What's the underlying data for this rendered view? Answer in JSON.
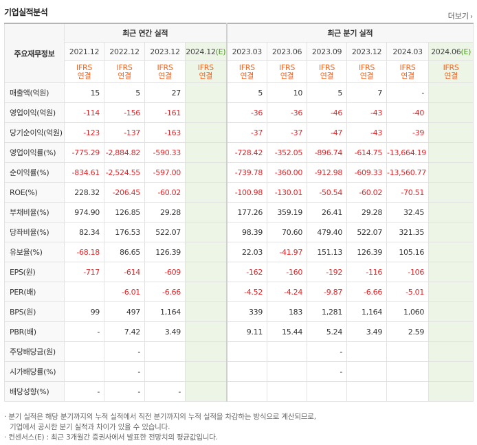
{
  "title": "기업실적분석",
  "more_label": "더보기",
  "header": {
    "row_label": "주요재무정보",
    "annual_group": "최근 연간 실적",
    "quarter_group": "최근 분기 실적",
    "annual_periods": [
      {
        "label": "2021.12",
        "est": ""
      },
      {
        "label": "2022.12",
        "est": ""
      },
      {
        "label": "2023.12",
        "est": ""
      },
      {
        "label": "2024.12",
        "est": "(E)"
      }
    ],
    "quarter_periods": [
      {
        "label": "2023.03",
        "est": ""
      },
      {
        "label": "2023.06",
        "est": ""
      },
      {
        "label": "2023.09",
        "est": ""
      },
      {
        "label": "2023.12",
        "est": ""
      },
      {
        "label": "2024.03",
        "est": ""
      },
      {
        "label": "2024.06",
        "est": "(E)"
      }
    ],
    "basis_line1": "IFRS",
    "basis_line2": "연결"
  },
  "rows": [
    {
      "label": "매출액(억원)",
      "values": [
        "15",
        "5",
        "27",
        "",
        "5",
        "10",
        "5",
        "7",
        "-",
        ""
      ]
    },
    {
      "label": "영업이익(억원)",
      "values": [
        "-114",
        "-156",
        "-161",
        "",
        "-36",
        "-36",
        "-46",
        "-43",
        "-40",
        ""
      ]
    },
    {
      "label": "당기순이익(억원)",
      "values": [
        "-123",
        "-137",
        "-163",
        "",
        "-37",
        "-37",
        "-47",
        "-43",
        "-39",
        ""
      ]
    },
    {
      "label": "영업이익률(%)",
      "values": [
        "-775.29",
        "-2,884.82",
        "-590.33",
        "",
        "-728.42",
        "-352.05",
        "-896.74",
        "-614.75",
        "-13,664.19",
        ""
      ]
    },
    {
      "label": "순이익률(%)",
      "values": [
        "-834.61",
        "-2,524.55",
        "-597.00",
        "",
        "-739.78",
        "-360.00",
        "-912.98",
        "-609.33",
        "-13,560.77",
        ""
      ]
    },
    {
      "label": "ROE(%)",
      "values": [
        "228.32",
        "-206.45",
        "-60.02",
        "",
        "-100.98",
        "-130.01",
        "-50.54",
        "-60.02",
        "-70.51",
        ""
      ]
    },
    {
      "label": "부채비율(%)",
      "values": [
        "974.90",
        "126.85",
        "29.28",
        "",
        "177.26",
        "359.19",
        "26.41",
        "29.28",
        "32.45",
        ""
      ]
    },
    {
      "label": "당좌비율(%)",
      "values": [
        "82.34",
        "176.53",
        "522.07",
        "",
        "98.39",
        "70.60",
        "479.40",
        "522.07",
        "321.35",
        ""
      ]
    },
    {
      "label": "유보율(%)",
      "values": [
        "-68.18",
        "86.65",
        "126.39",
        "",
        "22.03",
        "-41.97",
        "151.13",
        "126.39",
        "105.16",
        ""
      ]
    },
    {
      "label": "EPS(원)",
      "values": [
        "-717",
        "-614",
        "-609",
        "",
        "-162",
        "-160",
        "-192",
        "-116",
        "-106",
        ""
      ]
    },
    {
      "label": "PER(배)",
      "values": [
        "",
        "-6.01",
        "-6.66",
        "",
        "-4.52",
        "-4.24",
        "-9.87",
        "-6.66",
        "-5.01",
        ""
      ]
    },
    {
      "label": "BPS(원)",
      "values": [
        "99",
        "497",
        "1,164",
        "",
        "339",
        "183",
        "1,281",
        "1,164",
        "1,060",
        ""
      ]
    },
    {
      "label": "PBR(배)",
      "values": [
        "-",
        "7.42",
        "3.49",
        "",
        "9.11",
        "15.44",
        "5.24",
        "3.49",
        "2.59",
        ""
      ]
    },
    {
      "label": "주당배당금(원)",
      "values": [
        "",
        "-",
        "",
        "",
        "",
        "",
        "-",
        "",
        "",
        ""
      ]
    },
    {
      "label": "시가배당률(%)",
      "values": [
        "",
        "-",
        "",
        "",
        "",
        "",
        "-",
        "",
        "",
        ""
      ]
    },
    {
      "label": "배당성향(%)",
      "values": [
        "-",
        "-",
        "-",
        "",
        "",
        "",
        "",
        "",
        "",
        ""
      ]
    }
  ],
  "notes": [
    "· 분기 실적은 해당 분기까지의 누적 실적에서 직전 분기까지의 누적 실적을 차감하는 방식으로 계산되므로,",
    "기업에서 공시한 분기 실적과 차이가 있을 수 있습니다.",
    "· 컨센서스(E) : 최근 3개월간 증권사에서 발표한 전망치의 평균값입니다."
  ],
  "colors": {
    "negative": "#e2262a",
    "basis": "#f26522",
    "estimate_bg": "#edf5e6",
    "estimate_text": "#4a9a1c"
  }
}
